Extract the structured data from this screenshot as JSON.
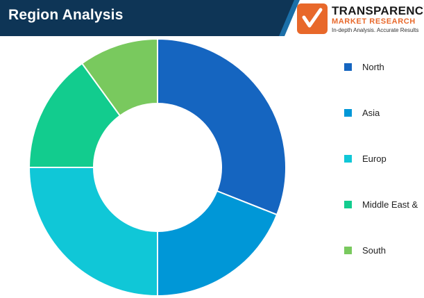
{
  "header": {
    "title": "Region Analysis",
    "band_color": "#0e3556",
    "accent_color": "#1b6fa8"
  },
  "logo": {
    "line1": "TRANSPARENCY",
    "line2": "MARKET RESEARCH",
    "tagline": "In-depth Analysis. Accurate Results",
    "mark_color": "#e8682a"
  },
  "chart_data": {
    "type": "pie",
    "style": "donut",
    "categories": [
      "North",
      "Asia",
      "Europ",
      "Middle East &",
      "South"
    ],
    "values": [
      31,
      19,
      25,
      15,
      10
    ],
    "colors": [
      "#1565c0",
      "#0097d7",
      "#10c7d7",
      "#12cc8e",
      "#79c95e"
    ],
    "legend_position": "right"
  }
}
